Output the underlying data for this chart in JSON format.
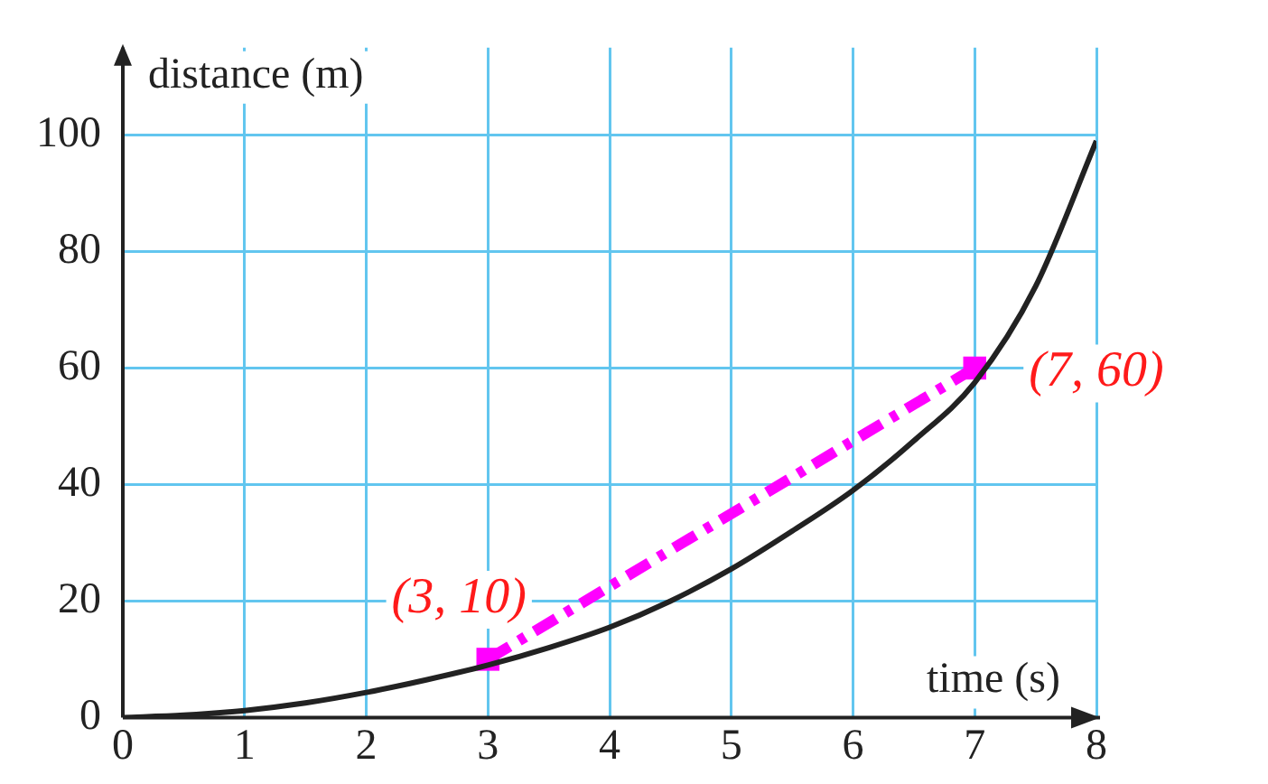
{
  "chart_data": {
    "type": "line",
    "xlabel": "time (s)",
    "ylabel": "distance (m)",
    "xlim": [
      0,
      8
    ],
    "ylim": [
      0,
      115
    ],
    "xticks": [
      0,
      1,
      2,
      3,
      4,
      5,
      6,
      7,
      8
    ],
    "yticks": [
      0,
      20,
      40,
      60,
      80,
      100
    ],
    "grid": true,
    "legend": false,
    "series": [
      {
        "type": "line",
        "color": "#222222",
        "marker": "none",
        "line_style": "solid",
        "x": [
          0,
          0.5,
          1,
          1.5,
          2,
          2.5,
          3,
          3.5,
          4,
          4.5,
          5,
          5.5,
          6,
          6.5,
          7,
          7.5,
          8
        ],
        "values": [
          0,
          0.4,
          1.2,
          2.5,
          4.3,
          6.5,
          9,
          12,
          15.5,
          20,
          25.5,
          32,
          39,
          47.5,
          57.5,
          74,
          99
        ]
      },
      {
        "type": "line",
        "color": "#ff00ff",
        "marker": "square",
        "line_style": "dashed",
        "x": [
          3,
          7
        ],
        "values": [
          10,
          60
        ]
      }
    ],
    "annotations": [
      {
        "text": "(3, 10)",
        "x": 3,
        "y": 10
      },
      {
        "text": "(7, 60)",
        "x": 7,
        "y": 60
      }
    ]
  }
}
